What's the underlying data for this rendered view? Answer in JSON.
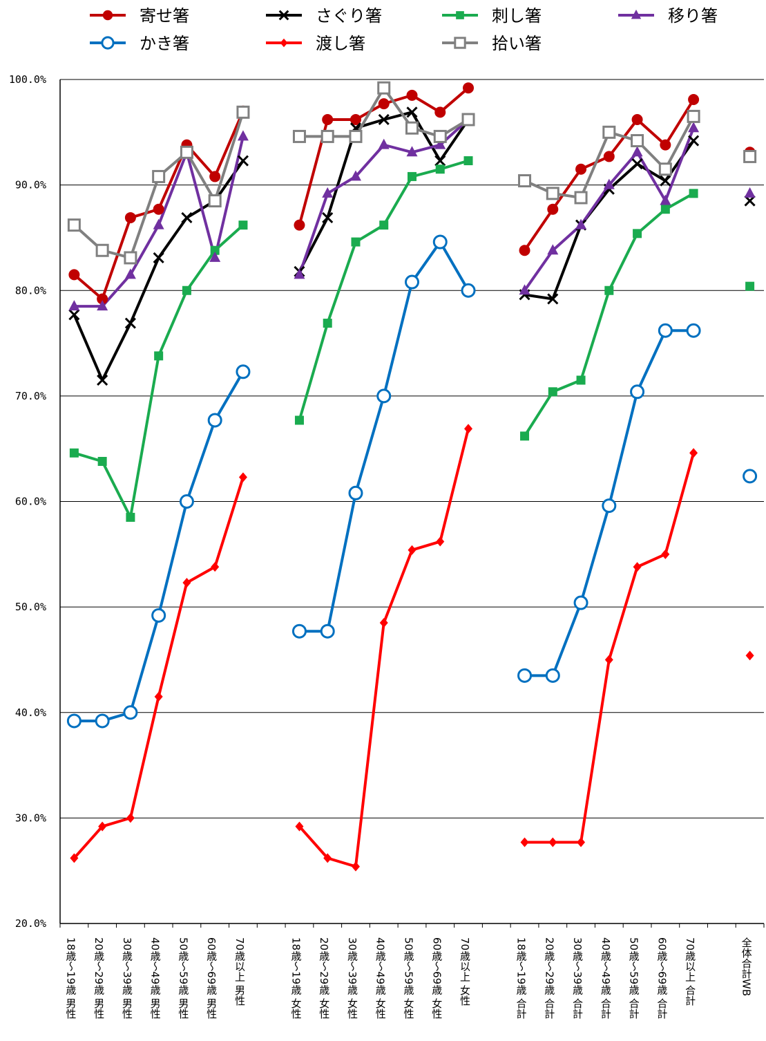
{
  "chart_data": {
    "type": "line",
    "ylim": [
      20,
      100
    ],
    "yticks": [
      "20.0%",
      "30.0%",
      "40.0%",
      "50.0%",
      "60.0%",
      "70.0%",
      "80.0%",
      "90.0%",
      "100.0%"
    ],
    "grid": true,
    "legend_position": "top",
    "categories": [
      "18歳～19歳 男性",
      "20歳～29歳 男性",
      "30歳～39歳 男性",
      "40歳～49歳 男性",
      "50歳～59歳 男性",
      "60歳～69歳 男性",
      "70歳以上 男性",
      "",
      "18歳～19歳 女性",
      "20歳～29歳 女性",
      "30歳～39歳 女性",
      "40歳～49歳 女性",
      "50歳～59歳 女性",
      "60歳～69歳 女性",
      "70歳以上 女性",
      "",
      "18歳～19歳 合計",
      "20歳～29歳 合計",
      "30歳～39歳 合計",
      "40歳～49歳 合計",
      "50歳～59歳 合計",
      "60歳～69歳 合計",
      "70歳以上 合計",
      "",
      "全体合計WB"
    ],
    "series": [
      {
        "name": "寄せ箸",
        "color": "#c00000",
        "marker": "circle-filled",
        "values": [
          81.5,
          79.2,
          86.9,
          87.7,
          93.8,
          90.8,
          97.0,
          null,
          86.2,
          96.2,
          96.2,
          97.7,
          98.5,
          96.9,
          99.2,
          null,
          83.8,
          87.7,
          91.5,
          92.7,
          96.2,
          93.8,
          98.1,
          null,
          93.1
        ]
      },
      {
        "name": "さぐり箸",
        "color": "#000000",
        "marker": "x",
        "values": [
          77.7,
          71.5,
          76.9,
          83.1,
          86.9,
          88.5,
          92.3,
          null,
          81.8,
          86.9,
          95.4,
          96.2,
          96.9,
          92.3,
          96.2,
          null,
          79.6,
          79.2,
          86.2,
          89.6,
          92.0,
          90.4,
          94.2,
          null,
          88.5
        ]
      },
      {
        "name": "刺し箸",
        "color": "#1aab4f",
        "marker": "square-filled",
        "values": [
          64.6,
          63.8,
          58.5,
          73.8,
          80.0,
          83.8,
          86.2,
          null,
          67.7,
          76.9,
          84.6,
          86.2,
          90.8,
          91.5,
          92.3,
          null,
          66.2,
          70.4,
          71.5,
          80.0,
          85.4,
          87.7,
          89.2,
          null,
          80.4
        ]
      },
      {
        "name": "移り箸",
        "color": "#7030a0",
        "marker": "triangle-filled",
        "values": [
          78.5,
          78.5,
          81.5,
          86.2,
          93.1,
          83.1,
          94.6,
          null,
          81.5,
          89.2,
          90.8,
          93.8,
          93.1,
          93.8,
          96.2,
          null,
          80.0,
          83.8,
          86.2,
          90.0,
          93.1,
          88.5,
          95.4,
          null,
          89.2
        ]
      },
      {
        "name": "かき箸",
        "color": "#0070c0",
        "marker": "circle-open",
        "values": [
          39.2,
          39.2,
          40.0,
          49.2,
          60.0,
          67.7,
          72.3,
          null,
          47.7,
          47.7,
          60.8,
          70.0,
          80.8,
          84.6,
          80.0,
          null,
          43.5,
          43.5,
          50.4,
          59.6,
          70.4,
          76.2,
          76.2,
          null,
          62.4
        ]
      },
      {
        "name": "渡し箸",
        "color": "#ff0000",
        "marker": "diamond-filled",
        "values": [
          26.2,
          29.2,
          30.0,
          41.5,
          52.3,
          53.8,
          62.3,
          null,
          29.2,
          26.2,
          25.4,
          48.5,
          55.4,
          56.2,
          66.9,
          null,
          27.7,
          27.7,
          27.7,
          45.0,
          53.8,
          55.0,
          64.6,
          null,
          45.4
        ]
      },
      {
        "name": "拾い箸",
        "color": "#808080",
        "marker": "square-open",
        "values": [
          86.2,
          83.8,
          83.1,
          90.8,
          93.1,
          88.5,
          96.9,
          null,
          94.6,
          94.6,
          94.6,
          99.2,
          95.4,
          94.6,
          96.2,
          null,
          90.4,
          89.2,
          88.8,
          95.0,
          94.2,
          91.5,
          96.5,
          null,
          92.7
        ]
      }
    ]
  }
}
